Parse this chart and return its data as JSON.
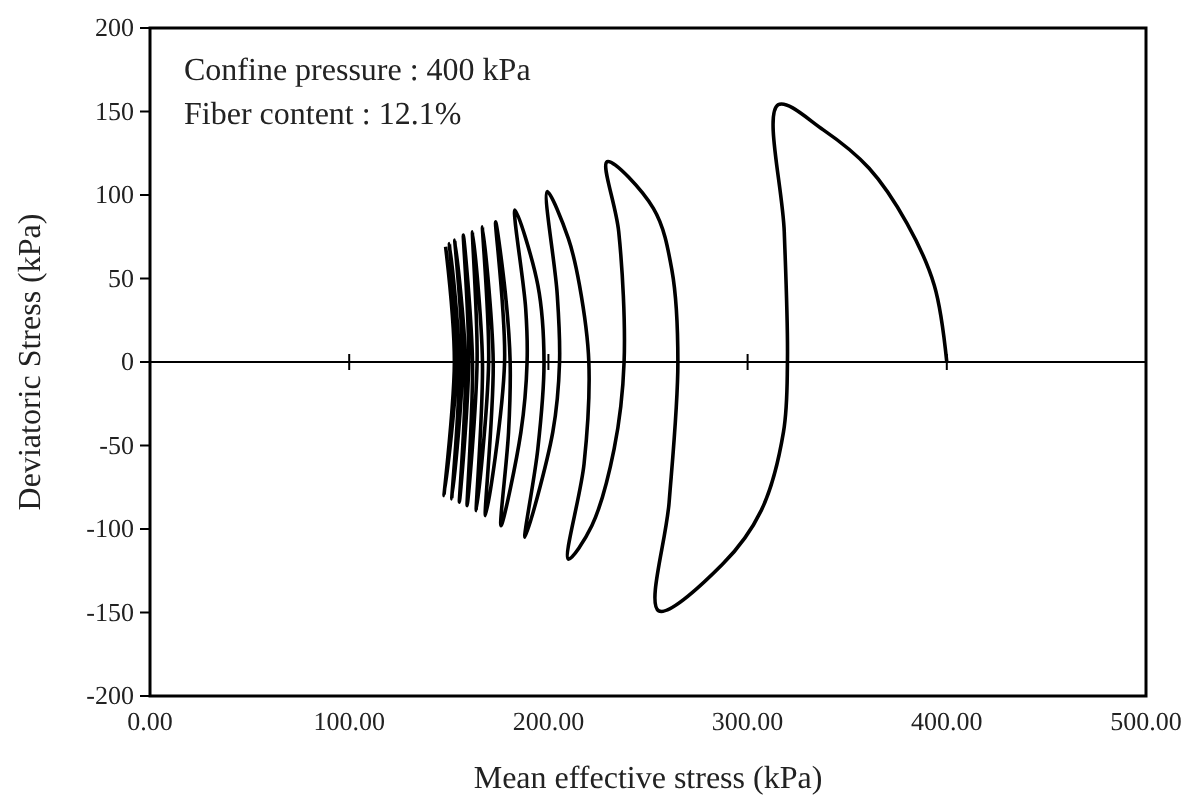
{
  "chart_data": {
    "type": "line",
    "xlabel": "Mean effective stress (kPa)",
    "ylabel": "Deviatoric Stress (kPa)",
    "annotations": [
      "Confine pressure : 400 kPa",
      "Fiber content : 12.1%"
    ],
    "xlim": [
      0,
      500
    ],
    "ylim": [
      -200,
      200
    ],
    "xticks": [
      {
        "value": 0,
        "label": "0.00"
      },
      {
        "value": 100,
        "label": "100.00"
      },
      {
        "value": 200,
        "label": "200.00"
      },
      {
        "value": 300,
        "label": "300.00"
      },
      {
        "value": 400,
        "label": "400.00"
      },
      {
        "value": 500,
        "label": "500.00"
      }
    ],
    "yticks": [
      -200,
      -150,
      -100,
      -50,
      0,
      50,
      100,
      150,
      200
    ],
    "marker": "none",
    "line_style": "solid",
    "ref_lines": [
      {
        "axis": "y",
        "value": 0,
        "color": "#000000"
      }
    ],
    "series": [
      {
        "color": "#000000",
        "x": [
          400,
          393.7,
          380,
          361,
          338,
          315.3,
          318.4,
          320,
          318,
          306.8,
          287.5,
          255.4,
          260.6,
          265,
          262,
          252.7,
          229.5,
          235.3,
          238,
          233,
          221.8,
          210,
          217.9,
          220.3,
          215.6,
          210,
          199.4,
          204.4,
          205.6,
          202.2,
          188.2,
          194.7,
          197.8,
          194.7,
          183.2,
          188.6,
          189.3,
          186.2,
          176.2,
          180,
          180.8,
          178.4,
          173.5,
          178,
          168.4,
          172.3,
          166.9,
          170,
          163.8,
          166.9,
          161.9,
          164.2,
          159.2,
          161.9,
          157.3,
          160,
          155.3,
          158.4,
          153,
          156.9,
          151.5,
          155.3,
          150.3,
          154,
          147.6,
          152.8,
          148.4
        ],
        "values": [
          0,
          46,
          83,
          116,
          139,
          154,
          78,
          0,
          -42,
          -89,
          -121,
          -149,
          -84,
          0,
          55,
          92,
          120,
          78,
          0,
          -52,
          -98,
          -118,
          -61,
          0,
          46,
          74,
          102,
          41,
          0,
          -42,
          -105,
          -52,
          0,
          46,
          91,
          32,
          0,
          -42,
          -98,
          -42,
          0,
          41,
          84,
          0,
          -92,
          0,
          81,
          0,
          -89,
          0,
          78,
          0,
          -86,
          0,
          76,
          0,
          -84,
          0,
          73,
          0,
          -82,
          0,
          71,
          0,
          -80,
          0,
          69
        ]
      }
    ]
  }
}
